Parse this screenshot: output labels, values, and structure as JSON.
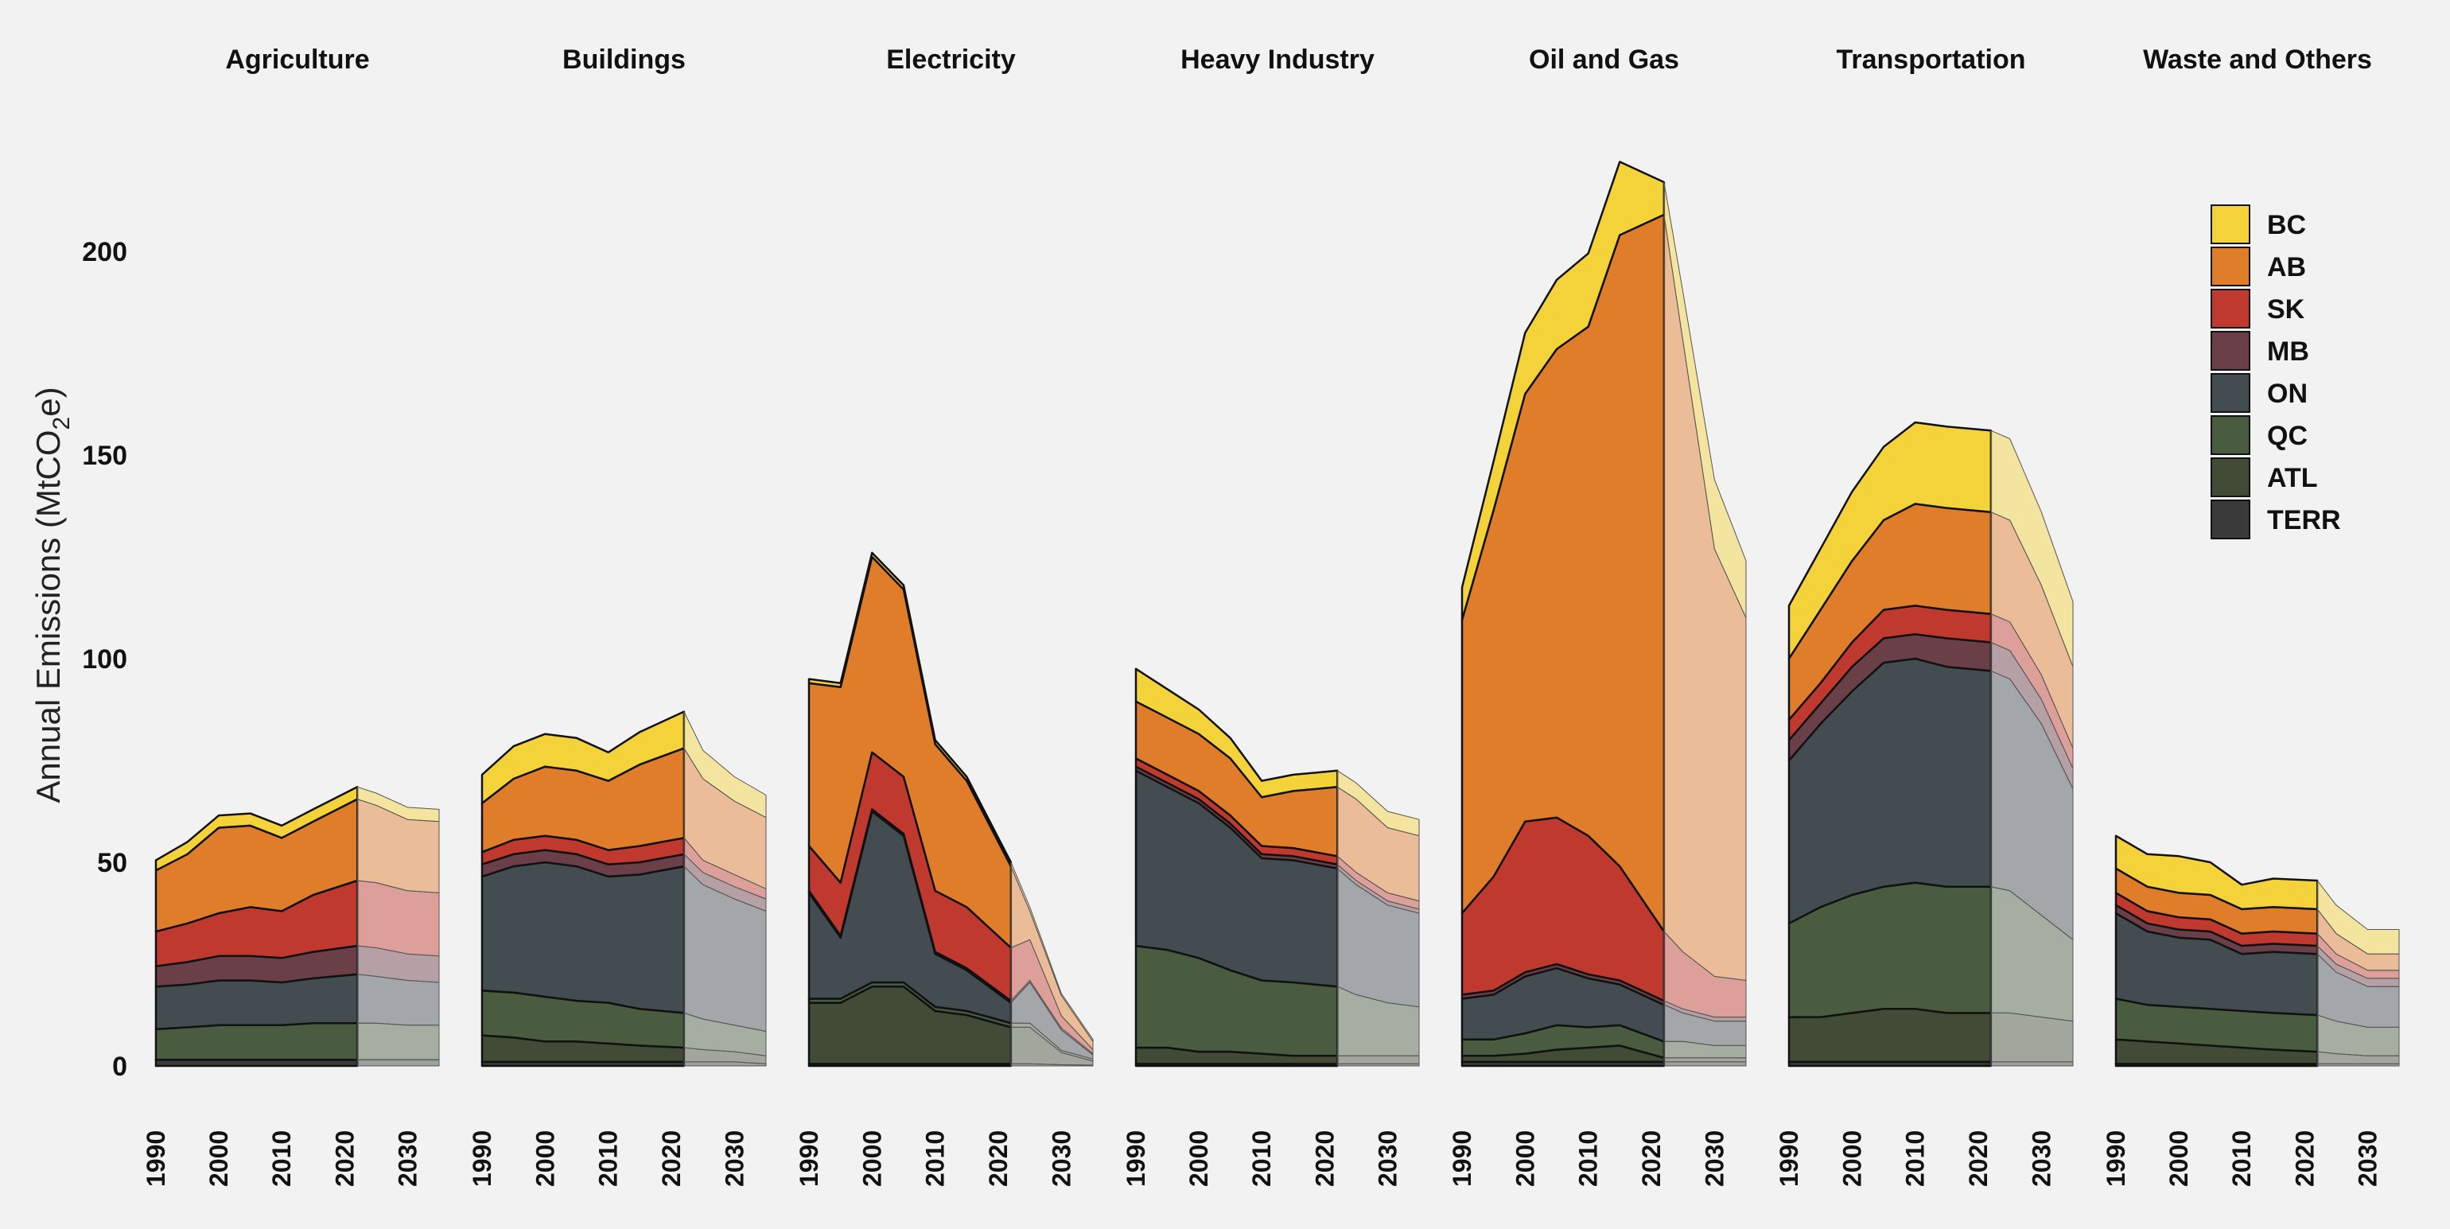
{
  "chart_data": {
    "type": "area",
    "ylabel": "Annual Emissions (MtCO2e)",
    "ylabel_parts": {
      "pre": "Annual Emissions  (MtCO",
      "sub": "2",
      "post": "e)"
    },
    "ylim": [
      0,
      230
    ],
    "yticks": [
      0,
      50,
      100,
      150,
      200
    ],
    "x_hist": [
      1990,
      1995,
      2000,
      2005,
      2010,
      2015,
      2022
    ],
    "x_proj": [
      2022,
      2025,
      2030,
      2035
    ],
    "xticks": [
      1990,
      2000,
      2010,
      2020,
      2030
    ],
    "xlim": [
      1990,
      2035
    ],
    "legend_position": "top-right",
    "series": [
      {
        "name": "BC",
        "color": "#f4d23a"
      },
      {
        "name": "AB",
        "color": "#e07d2b"
      },
      {
        "name": "SK",
        "color": "#c0392f"
      },
      {
        "name": "MB",
        "color": "#6b3f47"
      },
      {
        "name": "ON",
        "color": "#434c51"
      },
      {
        "name": "QC",
        "color": "#4a5c3f"
      },
      {
        "name": "ATL",
        "color": "#414b36"
      },
      {
        "name": "TERR",
        "color": "#3a3a3a"
      }
    ],
    "panels": [
      {
        "title": "Agriculture",
        "hist": {
          "TERR": [
            1.5,
            1.5,
            1.5,
            1.5,
            1.5,
            1.5,
            1.5
          ],
          "ATL": [
            0,
            0,
            0,
            0,
            0,
            0,
            0
          ],
          "QC": [
            7.5,
            8,
            8.5,
            8.5,
            8.5,
            9,
            9
          ],
          "ON": [
            10.5,
            10.5,
            11,
            11,
            10.5,
            11,
            12
          ],
          "MB": [
            5,
            5.5,
            6,
            6,
            6,
            6.5,
            7
          ],
          "SK": [
            8.5,
            9.5,
            10.5,
            12,
            11.5,
            14,
            16
          ],
          "AB": [
            15,
            17,
            21,
            20,
            18,
            18,
            20
          ],
          "BC": [
            2.5,
            3,
            3,
            3,
            3,
            3,
            3
          ]
        },
        "proj": {
          "TERR": [
            1.5,
            1.5,
            1.5,
            1.5
          ],
          "ATL": [
            0,
            0,
            0,
            0
          ],
          "QC": [
            9,
            9,
            8.5,
            8.5
          ],
          "ON": [
            12,
            11.5,
            11,
            10.5
          ],
          "MB": [
            7,
            7,
            6.5,
            6.5
          ],
          "SK": [
            16,
            16,
            15.5,
            15.5
          ],
          "AB": [
            20,
            19,
            17.5,
            17.5
          ],
          "BC": [
            3,
            3,
            3,
            3
          ]
        }
      },
      {
        "title": "Buildings",
        "hist": {
          "TERR": [
            1,
            1,
            1,
            1,
            1,
            1,
            1
          ],
          "ATL": [
            6.5,
            6,
            5,
            5,
            4.5,
            4,
            3.5
          ],
          "QC": [
            11,
            11,
            11,
            10,
            10,
            9,
            8.5
          ],
          "ON": [
            28,
            31,
            33,
            33,
            31,
            33,
            36
          ],
          "MB": [
            3,
            3,
            3,
            3,
            3,
            3,
            3
          ],
          "SK": [
            3,
            3.5,
            3.5,
            3.5,
            3.5,
            4,
            4
          ],
          "AB": [
            12,
            15,
            17,
            17,
            17,
            20,
            22
          ],
          "BC": [
            7,
            8,
            8,
            8,
            7,
            8,
            9
          ]
        },
        "proj": {
          "TERR": [
            1,
            1,
            1,
            0.5
          ],
          "ATL": [
            3.5,
            3,
            2.5,
            2
          ],
          "QC": [
            8.5,
            7.5,
            6.5,
            6
          ],
          "ON": [
            36,
            33,
            31,
            29.5
          ],
          "MB": [
            3,
            3,
            3,
            3
          ],
          "SK": [
            4,
            3,
            3,
            2.5
          ],
          "AB": [
            22,
            20,
            18,
            17.5
          ],
          "BC": [
            9,
            7,
            6,
            5.5
          ]
        }
      },
      {
        "title": "Electricity",
        "hist": {
          "TERR": [
            0.5,
            0.5,
            0.5,
            0.5,
            0.5,
            0.5,
            0.5
          ],
          "ATL": [
            15,
            15,
            19,
            19,
            13,
            12,
            9
          ],
          "QC": [
            1,
            1,
            1,
            1,
            1,
            1,
            1
          ],
          "ON": [
            26,
            15,
            42,
            36,
            13,
            10,
            5
          ],
          "MB": [
            0.5,
            0.5,
            0.5,
            0.5,
            0.5,
            0.5,
            0.5
          ],
          "SK": [
            11,
            13,
            14,
            14,
            15,
            15,
            13
          ],
          "AB": [
            40,
            48,
            48,
            46,
            36,
            31,
            20
          ],
          "BC": [
            1,
            1,
            1,
            1,
            1,
            1,
            1
          ]
        },
        "proj": {
          "TERR": [
            0.5,
            0.5,
            0.3,
            0.2
          ],
          "ATL": [
            9,
            9,
            3,
            1
          ],
          "QC": [
            1,
            1,
            0.5,
            0.5
          ],
          "ON": [
            5,
            10,
            5,
            1
          ],
          "MB": [
            0.5,
            0.5,
            0.5,
            0.3
          ],
          "SK": [
            13,
            10,
            3,
            1
          ],
          "AB": [
            20,
            7,
            5,
            2
          ],
          "BC": [
            1,
            1,
            0.5,
            0.5
          ]
        }
      },
      {
        "title": "Heavy Industry",
        "hist": {
          "TERR": [
            0.5,
            0.5,
            0.5,
            0.5,
            0.5,
            0.5,
            0.5
          ],
          "ATL": [
            4,
            4,
            3,
            3,
            2.5,
            2,
            2
          ],
          "QC": [
            25,
            24,
            23,
            20,
            18,
            18,
            17
          ],
          "ON": [
            43,
            40,
            38,
            35,
            30,
            30,
            29
          ],
          "MB": [
            1,
            1,
            1,
            1,
            1,
            1,
            1
          ],
          "SK": [
            2,
            2,
            2,
            2,
            2,
            2,
            2
          ],
          "AB": [
            14,
            14,
            14,
            14,
            12,
            14,
            17
          ],
          "BC": [
            8,
            7,
            6,
            5,
            4,
            4,
            4
          ]
        },
        "proj": {
          "TERR": [
            0.5,
            0.5,
            0.5,
            0.5
          ],
          "ATL": [
            2,
            2,
            2,
            2
          ],
          "QC": [
            17,
            15,
            13,
            12
          ],
          "ON": [
            29,
            27,
            24,
            23
          ],
          "MB": [
            1,
            1,
            1,
            1
          ],
          "SK": [
            2,
            2,
            2,
            2
          ],
          "AB": [
            17,
            18,
            16,
            16
          ],
          "BC": [
            4,
            4,
            4,
            4
          ]
        }
      },
      {
        "title": "Oil and Gas",
        "hist": {
          "TERR": [
            1,
            1,
            1,
            1,
            1,
            1,
            1
          ],
          "ATL": [
            1.5,
            1.5,
            2,
            3,
            3.5,
            4,
            1
          ],
          "QC": [
            4,
            4,
            5,
            6,
            5,
            5,
            4
          ],
          "ON": [
            10,
            11,
            14,
            14,
            12,
            10,
            9
          ],
          "MB": [
            1,
            1,
            1,
            1,
            1,
            1,
            1
          ],
          "SK": [
            20,
            28,
            37,
            36,
            34,
            28,
            17
          ],
          "AB": [
            72,
            90,
            105,
            115,
            125,
            155,
            176
          ],
          "BC": [
            8,
            12,
            15,
            17,
            18,
            18,
            8
          ]
        },
        "proj": {
          "TERR": [
            1,
            1,
            1,
            1
          ],
          "ATL": [
            1,
            1,
            1,
            1
          ],
          "QC": [
            4,
            4,
            3,
            3
          ],
          "ON": [
            9,
            7,
            6,
            6
          ],
          "MB": [
            1,
            1,
            1,
            1
          ],
          "SK": [
            17,
            14,
            10,
            9
          ],
          "AB": [
            176,
            150,
            105,
            89
          ],
          "BC": [
            8,
            12,
            17,
            14
          ]
        }
      },
      {
        "title": "Transportation",
        "hist": {
          "TERR": [
            1,
            1,
            1,
            1,
            1,
            1,
            1
          ],
          "ATL": [
            11,
            11,
            12,
            13,
            13,
            12,
            12
          ],
          "QC": [
            23,
            27,
            29,
            30,
            31,
            31,
            31
          ],
          "ON": [
            40,
            45,
            50,
            55,
            55,
            54,
            53
          ],
          "MB": [
            5,
            5,
            6,
            6,
            6,
            7,
            7
          ],
          "SK": [
            5,
            5,
            6,
            7,
            7,
            7,
            7
          ],
          "AB": [
            15,
            18,
            20,
            22,
            25,
            25,
            25
          ],
          "BC": [
            13,
            15,
            17,
            18,
            20,
            20,
            20
          ]
        },
        "proj": {
          "TERR": [
            1,
            1,
            1,
            1
          ],
          "ATL": [
            12,
            12,
            11,
            10
          ],
          "QC": [
            31,
            30,
            25,
            20
          ],
          "ON": [
            53,
            52,
            47,
            37
          ],
          "MB": [
            7,
            7,
            6,
            5
          ],
          "SK": [
            7,
            7,
            6,
            5
          ],
          "AB": [
            25,
            25,
            22,
            20
          ],
          "BC": [
            20,
            20,
            18,
            16
          ]
        }
      },
      {
        "title": "Waste and Others",
        "hist": {
          "TERR": [
            0.5,
            0.5,
            0.5,
            0.5,
            0.5,
            0.5,
            0.5
          ],
          "ATL": [
            6,
            5.5,
            5,
            4.5,
            4,
            3.5,
            3
          ],
          "QC": [
            10,
            9,
            9,
            9,
            9,
            9,
            9
          ],
          "ON": [
            21,
            18,
            17,
            17,
            14,
            15,
            15
          ],
          "MB": [
            2,
            2,
            2,
            2,
            2,
            2,
            2
          ],
          "SK": [
            3,
            3,
            3,
            3,
            3,
            3,
            3
          ],
          "AB": [
            6,
            6,
            6,
            6,
            6,
            6,
            6
          ],
          "BC": [
            8,
            8,
            9,
            8,
            6,
            7,
            7
          ]
        },
        "proj": {
          "TERR": [
            0.5,
            0.5,
            0.5,
            0.5
          ],
          "ATL": [
            3,
            2.5,
            2,
            2
          ],
          "QC": [
            9,
            8,
            7,
            7
          ],
          "ON": [
            15,
            12,
            10,
            10
          ],
          "MB": [
            2,
            2,
            2,
            2
          ],
          "SK": [
            3,
            2.5,
            2,
            2
          ],
          "AB": [
            6,
            5,
            4,
            4
          ],
          "BC": [
            7,
            7,
            6,
            6
          ]
        }
      }
    ]
  }
}
